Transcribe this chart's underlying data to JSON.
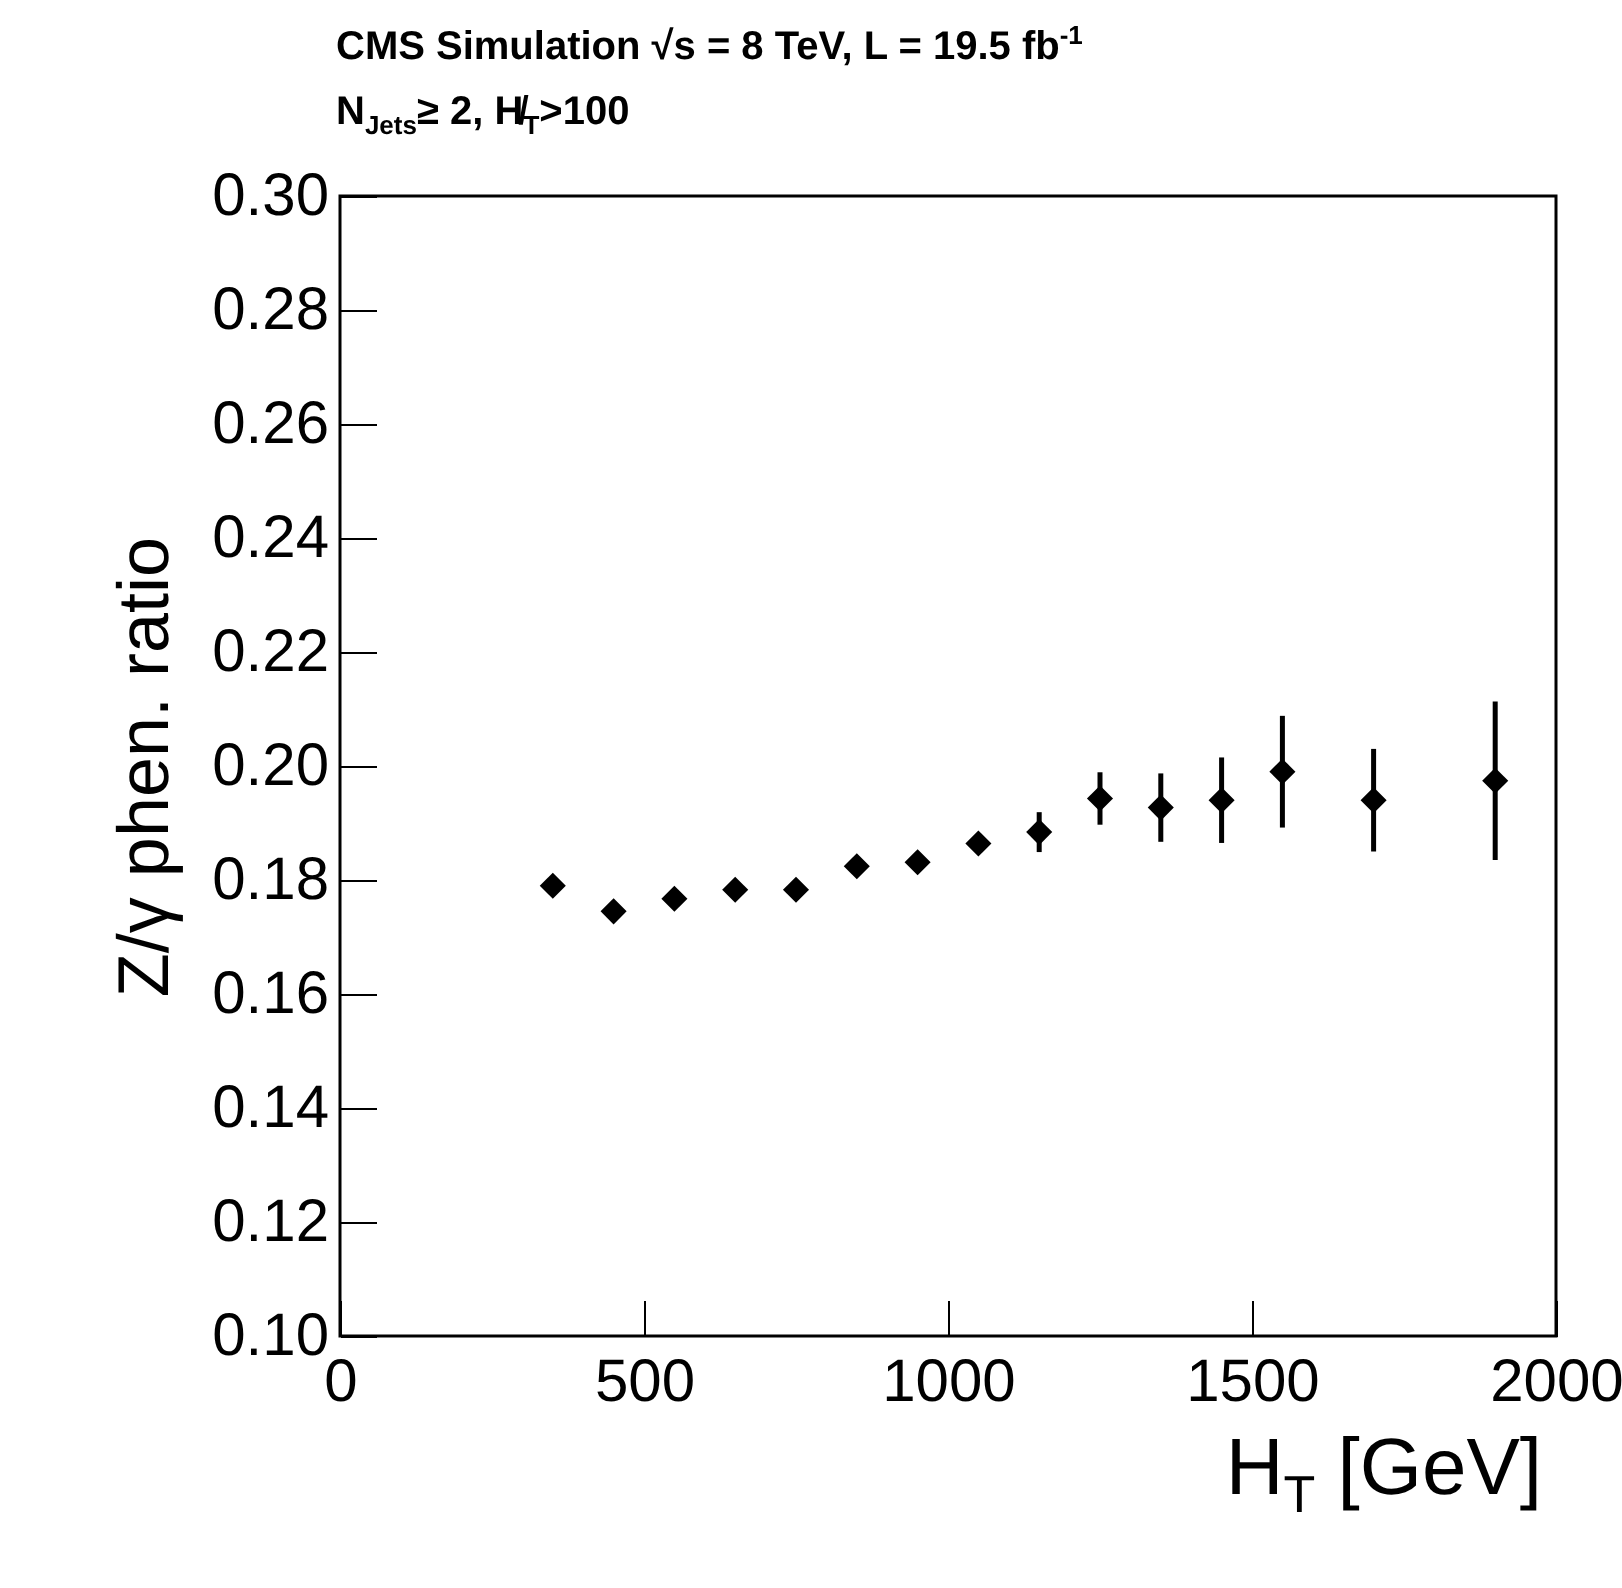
{
  "chart_data": {
    "type": "scatter",
    "title": "CMS Simulation √s = 8 TeV, L = 19.5 fb$^{-1}$",
    "subtitle": "N$_{Jets}$≥ 2, H̸$_{T}$>100",
    "xlabel": "H$_{T}$ [GeV]",
    "ylabel": "Z/γ phen. ratio",
    "x": [
      350,
      450,
      550,
      650,
      750,
      850,
      950,
      1050,
      1150,
      1250,
      1350,
      1450,
      1550,
      1700,
      1900
    ],
    "values": [
      0.179,
      0.1745,
      0.1767,
      0.1783,
      0.1783,
      0.1824,
      0.1831,
      0.1864,
      0.1884,
      0.1943,
      0.1927,
      0.194,
      0.199,
      0.194,
      0.1974
    ],
    "errors": [
      null,
      null,
      null,
      null,
      null,
      null,
      null,
      null,
      0.0035,
      0.0046,
      0.006,
      0.0075,
      0.0098,
      0.009,
      0.0139
    ],
    "color": "#000000",
    "marker": "diamond",
    "grid": false,
    "xlim": [
      0,
      2000
    ],
    "ylim": [
      0.1,
      0.3
    ],
    "xticks": [
      0,
      500,
      1000,
      1500,
      2000
    ],
    "yticks": [
      {
        "value": 0.1,
        "label": "0.10"
      },
      0.12,
      0.14,
      0.16,
      0.18,
      {
        "value": 0.2,
        "label": "0.20"
      },
      0.22,
      0.24,
      0.26,
      0.28,
      {
        "value": 0.3,
        "label": "0.30"
      }
    ]
  }
}
